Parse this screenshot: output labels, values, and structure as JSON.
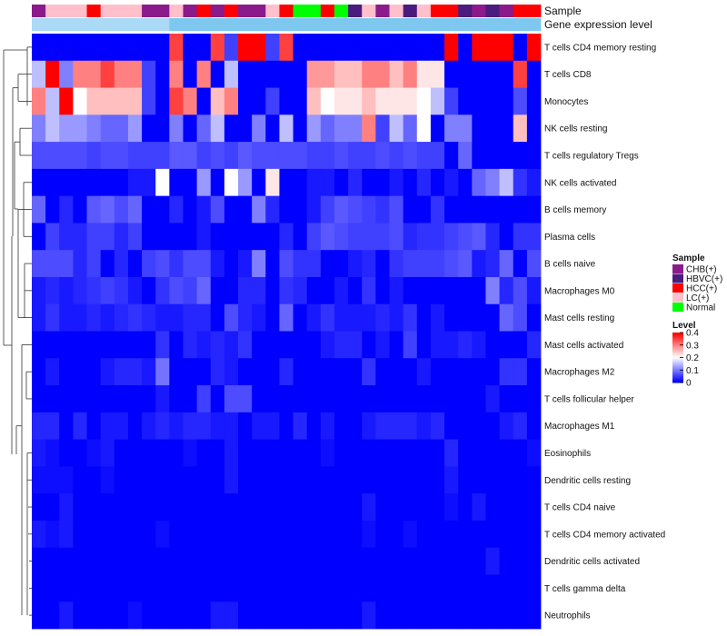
{
  "chart_data": {
    "type": "heatmap",
    "annotation_tracks": [
      "Sample",
      "Gene expression level"
    ],
    "rows": [
      "T cells CD4 memory resting",
      "T cells CD8",
      "Monocytes",
      "NK cells resting",
      "T cells regulatory  Tregs",
      "NK cells activated",
      "B cells memory",
      "Plasma cells",
      "B cells naive",
      "Macrophages M0",
      "Mast cells resting",
      "Mast cells activated",
      "Macrophages M2",
      "T cells follicular helper",
      "Macrophages M1",
      "Eosinophils",
      "Dendritic cells resting",
      "T cells CD4 naive",
      "T cells CD4 memory activated",
      "Dendritic cells activated",
      "T cells gamma delta",
      "Neutrophils"
    ],
    "sample_groups": [
      "CHB(+)",
      "LC(+)",
      "LC(+)",
      "LC(+)",
      "HCC(+)",
      "LC(+)",
      "LC(+)",
      "LC(+)",
      "CHB(+)",
      "CHB(+)",
      "LC(+)",
      "CHB(+)",
      "HCC(+)",
      "CHB(+)",
      "HCC(+)",
      "CHB(+)",
      "CHB(+)",
      "LC(+)",
      "HCC(+)",
      "Normal",
      "Normal",
      "HCC(+)",
      "Normal",
      "HBVC(+)",
      "LC(+)",
      "CHB(+)",
      "LC(+)",
      "HBVC(+)",
      "LC(+)",
      "HCC(+)",
      "HCC(+)",
      "HBVC(+)",
      "CHB(+)",
      "HBVC(+)",
      "CHB(+)",
      "HCC(+)",
      "HCC(+)"
    ],
    "expression_track": [
      0.2,
      0.2,
      0.2,
      0.2,
      0.2,
      0.2,
      0.2,
      0.2,
      0.2,
      0.2,
      0.4,
      0.4,
      0.4,
      0.4,
      0.4,
      0.4,
      0.4,
      0.4,
      0.4,
      0.4,
      0.4,
      0.4,
      0.4,
      0.4,
      0.4,
      0.4,
      0.4,
      0.4,
      0.4,
      0.4,
      0.4,
      0.4,
      0.4,
      0.4,
      0.4,
      0.4,
      0.4
    ],
    "values": [
      [
        0,
        0,
        0,
        0,
        0,
        0,
        0,
        0,
        0,
        0,
        0.35,
        0,
        0,
        0.35,
        0.05,
        0.4,
        0.4,
        0.05,
        0.35,
        0,
        0,
        0,
        0,
        0,
        0,
        0,
        0,
        0,
        0,
        0,
        0.4,
        0,
        0.4,
        0.4,
        0.4,
        0,
        0.4
      ],
      [
        0.15,
        0.4,
        0.1,
        0.3,
        0.3,
        0.35,
        0.3,
        0.3,
        0.05,
        0,
        0.3,
        0,
        0.3,
        0,
        0.15,
        0,
        0,
        0,
        0,
        0,
        0.28,
        0.28,
        0.25,
        0.25,
        0.3,
        0.3,
        0.25,
        0.3,
        0.22,
        0.22,
        0,
        0,
        0,
        0,
        0,
        0.35,
        0
      ],
      [
        0.3,
        0.15,
        0.4,
        0.2,
        0.25,
        0.25,
        0.25,
        0.25,
        0.05,
        0,
        0.35,
        0.3,
        0,
        0.25,
        0.3,
        0,
        0,
        0.05,
        0,
        0,
        0.25,
        0.2,
        0.22,
        0.22,
        0.25,
        0.22,
        0.22,
        0.22,
        0.2,
        0.15,
        0.05,
        0,
        0,
        0,
        0,
        0.06,
        0
      ],
      [
        0.1,
        0.15,
        0.12,
        0.12,
        0.1,
        0.08,
        0.08,
        0.12,
        0,
        0,
        0.1,
        0,
        0.08,
        0.15,
        0,
        0,
        0.1,
        0,
        0.15,
        0,
        0.12,
        0.08,
        0.1,
        0.1,
        0.3,
        0.05,
        0.15,
        0.08,
        0.2,
        0,
        0.1,
        0.1,
        0,
        0,
        0,
        0.25,
        0
      ],
      [
        0.06,
        0.06,
        0.06,
        0.06,
        0.05,
        0.06,
        0.06,
        0.05,
        0.05,
        0.05,
        0.07,
        0.07,
        0.05,
        0.06,
        0.05,
        0.07,
        0.06,
        0.06,
        0.06,
        0.06,
        0.05,
        0.05,
        0.06,
        0.05,
        0.05,
        0.06,
        0.05,
        0.06,
        0.05,
        0.05,
        0,
        0.08,
        0,
        0,
        0,
        0,
        0
      ],
      [
        0,
        0,
        0,
        0,
        0,
        0,
        0,
        0.02,
        0.02,
        0.2,
        0,
        0,
        0.12,
        0,
        0.2,
        0.12,
        0,
        0.22,
        0,
        0,
        0.02,
        0.02,
        0,
        0.03,
        0,
        0,
        0.02,
        0,
        0.03,
        0,
        0.02,
        0,
        0.08,
        0.1,
        0.15,
        0.04,
        0.02
      ],
      [
        0.08,
        0,
        0.03,
        0,
        0.07,
        0.08,
        0.06,
        0.08,
        0,
        0,
        0.03,
        0,
        0.02,
        0.06,
        0,
        0,
        0.1,
        0.03,
        0,
        0,
        0.02,
        0.05,
        0.07,
        0.06,
        0.05,
        0.04,
        0.06,
        0,
        0,
        0.04,
        0,
        0,
        0,
        0,
        0,
        0,
        0
      ],
      [
        0,
        0.05,
        0.03,
        0.03,
        0.05,
        0.05,
        0.03,
        0.05,
        0,
        0,
        0,
        0,
        0.02,
        0,
        0,
        0,
        0,
        0,
        0.03,
        0,
        0.05,
        0.07,
        0.06,
        0.05,
        0.05,
        0.05,
        0.06,
        0.03,
        0.04,
        0.04,
        0.05,
        0.06,
        0.07,
        0.03,
        0,
        0.04,
        0.04
      ],
      [
        0.06,
        0.06,
        0.06,
        0.03,
        0.05,
        0,
        0.03,
        0,
        0.05,
        0.06,
        0.04,
        0.06,
        0.06,
        0.02,
        0,
        0.02,
        0.1,
        0,
        0.06,
        0.04,
        0.04,
        0,
        0,
        0.02,
        0.03,
        0,
        0.04,
        0.05,
        0.05,
        0.05,
        0.06,
        0.07,
        0.02,
        0.03,
        0.08,
        0,
        0.06
      ],
      [
        0.02,
        0.03,
        0.02,
        0.03,
        0.04,
        0.05,
        0.04,
        0.02,
        0,
        0.04,
        0.06,
        0.05,
        0.08,
        0,
        0,
        0.03,
        0.03,
        0,
        0.04,
        0.03,
        0,
        0,
        0.02,
        0,
        0.04,
        0,
        0.02,
        0,
        0,
        0,
        0,
        0,
        0,
        0.1,
        0.03,
        0.06,
        0.02
      ],
      [
        0.02,
        0.04,
        0.02,
        0.02,
        0.03,
        0.02,
        0.03,
        0.04,
        0.03,
        0.02,
        0.02,
        0.03,
        0.03,
        0,
        0.06,
        0.03,
        0.02,
        0,
        0.08,
        0,
        0.02,
        0.04,
        0.02,
        0.02,
        0.02,
        0.03,
        0.02,
        0.04,
        0,
        0.02,
        0,
        0,
        0,
        0,
        0.08,
        0.06,
        0
      ],
      [
        0,
        0,
        0,
        0,
        0,
        0,
        0,
        0,
        0,
        0.04,
        0,
        0.03,
        0.02,
        0.03,
        0.02,
        0.04,
        0,
        0,
        0,
        0,
        0,
        0.02,
        0.03,
        0.03,
        0,
        0.02,
        0,
        0.05,
        0,
        0.02,
        0.02,
        0.03,
        0.02,
        0,
        0,
        0,
        0.03
      ],
      [
        0,
        0.02,
        0,
        0,
        0,
        0.02,
        0.03,
        0.03,
        0.02,
        0.09,
        0,
        0,
        0,
        0.03,
        0.02,
        0,
        0,
        0,
        0.03,
        0,
        0,
        0,
        0,
        0,
        0.04,
        0,
        0,
        0,
        0.02,
        0,
        0,
        0,
        0,
        0,
        0.04,
        0.04,
        0
      ],
      [
        0,
        0,
        0,
        0,
        0,
        0,
        0,
        0,
        0,
        0.02,
        0,
        0,
        0.05,
        0,
        0.06,
        0.06,
        0,
        0,
        0,
        0,
        0,
        0,
        0,
        0,
        0,
        0,
        0,
        0,
        0,
        0,
        0,
        0,
        0,
        0.02,
        0,
        0,
        0
      ],
      [
        0.03,
        0.03,
        0,
        0.03,
        0,
        0.02,
        0.02,
        0,
        0.02,
        0.03,
        0.02,
        0.03,
        0.03,
        0.02,
        0.02,
        0,
        0.02,
        0.02,
        0,
        0.03,
        0,
        0.02,
        0,
        0,
        0.02,
        0.03,
        0.03,
        0.03,
        0.02,
        0.03,
        0,
        0,
        0,
        0,
        0.02,
        0.03,
        0
      ],
      [
        0.02,
        0.01,
        0,
        0,
        0.01,
        0.02,
        0,
        0,
        0,
        0,
        0,
        0.01,
        0,
        0,
        0.02,
        0,
        0,
        0,
        0,
        0,
        0,
        0.01,
        0,
        0,
        0,
        0,
        0,
        0,
        0,
        0,
        0.03,
        0,
        0,
        0,
        0,
        0,
        0.01
      ],
      [
        0.01,
        0.01,
        0.01,
        0,
        0,
        0.01,
        0,
        0,
        0,
        0,
        0,
        0,
        0,
        0,
        0.02,
        0,
        0,
        0,
        0,
        0,
        0,
        0,
        0,
        0,
        0,
        0,
        0,
        0,
        0,
        0,
        0.02,
        0,
        0,
        0,
        0,
        0,
        0
      ],
      [
        0,
        0,
        0.02,
        0,
        0,
        0,
        0,
        0,
        0,
        0,
        0,
        0,
        0,
        0,
        0,
        0,
        0,
        0,
        0,
        0,
        0,
        0,
        0,
        0,
        0.02,
        0,
        0,
        0,
        0,
        0,
        0.01,
        0,
        0.02,
        0,
        0,
        0,
        0
      ],
      [
        0.02,
        0.01,
        0.02,
        0,
        0,
        0,
        0,
        0,
        0,
        0.01,
        0,
        0,
        0,
        0,
        0,
        0,
        0,
        0,
        0,
        0,
        0,
        0,
        0,
        0,
        0.01,
        0,
        0,
        0.01,
        0,
        0,
        0,
        0,
        0,
        0,
        0,
        0,
        0
      ],
      [
        0,
        0,
        0,
        0,
        0,
        0,
        0,
        0,
        0,
        0,
        0,
        0,
        0,
        0,
        0,
        0,
        0,
        0,
        0,
        0,
        0,
        0,
        0,
        0,
        0,
        0,
        0,
        0,
        0,
        0,
        0,
        0,
        0,
        0.02,
        0,
        0,
        0
      ],
      [
        0,
        0,
        0,
        0,
        0,
        0,
        0,
        0,
        0,
        0,
        0,
        0,
        0,
        0,
        0,
        0,
        0,
        0,
        0,
        0,
        0,
        0,
        0,
        0,
        0,
        0,
        0,
        0,
        0,
        0,
        0,
        0,
        0,
        0,
        0,
        0,
        0
      ],
      [
        0,
        0,
        0.02,
        0,
        0,
        0,
        0,
        0.01,
        0,
        0,
        0,
        0,
        0,
        0.02,
        0.02,
        0,
        0,
        0,
        0,
        0,
        0,
        0,
        0,
        0,
        0.02,
        0,
        0,
        0,
        0,
        0,
        0,
        0,
        0,
        0,
        0,
        0,
        0
      ]
    ],
    "legend_sample": {
      "title": "Sample",
      "entries": [
        {
          "label": "CHB(+)",
          "color": "#8B1A8B"
        },
        {
          "label": "HBVC(+)",
          "color": "#4B1C7E"
        },
        {
          "label": "HCC(+)",
          "color": "#FF0000"
        },
        {
          "label": "LC(+)",
          "color": "#FFC0CB"
        },
        {
          "label": "Normal",
          "color": "#00FF00"
        }
      ]
    },
    "legend_level": {
      "title": "Level",
      "ticks": [
        0.4,
        0.3,
        0.2,
        0.1,
        0
      ],
      "tick_labels": [
        "0.4",
        "0.3",
        "0.2",
        "0.1",
        "0"
      ]
    },
    "colorscale": {
      "low": "#0000FF",
      "mid": "#FFFFFF",
      "high": "#FF0000",
      "min": 0,
      "max": 0.4
    },
    "expression_colors": {
      "low": "#D6ECFA",
      "high": "#7EC8F0"
    }
  }
}
